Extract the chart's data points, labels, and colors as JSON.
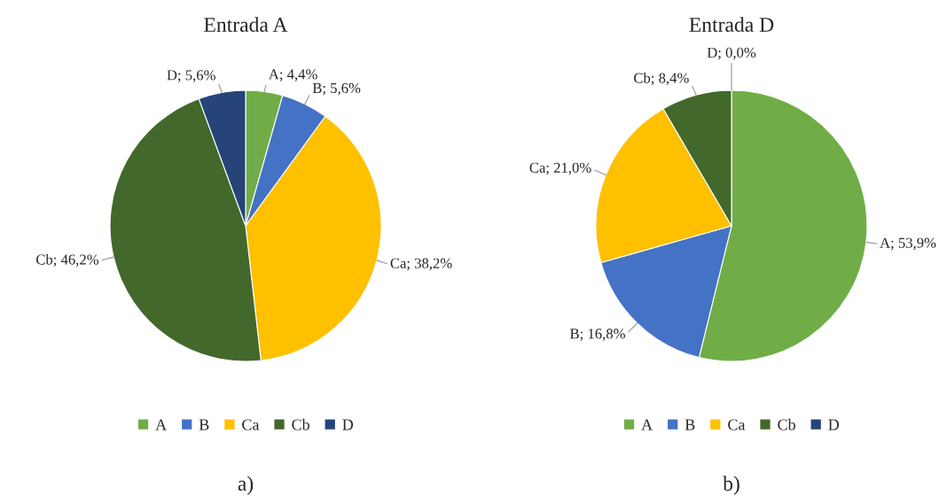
{
  "chart_data": [
    {
      "type": "pie",
      "title": "Entrada A",
      "categories": [
        "A",
        "B",
        "Ca",
        "Cb",
        "D"
      ],
      "values": [
        4.4,
        5.6,
        38.2,
        46.2,
        5.6
      ],
      "colors": [
        "#70ad47",
        "#4472c4",
        "#ffc000",
        "#43682b",
        "#264478"
      ],
      "value_labels": [
        "A; 4,4%",
        "B; 5,6%",
        "Ca; 38,2%",
        "Cb; 46,2%",
        "D; 5,6%"
      ],
      "legend": "bottom",
      "annotations": [
        "a)"
      ]
    },
    {
      "type": "pie",
      "title": "Entrada D",
      "categories": [
        "A",
        "B",
        "Ca",
        "Cb",
        "D"
      ],
      "values": [
        53.9,
        16.8,
        21.0,
        8.4,
        0.0
      ],
      "colors": [
        "#70ad47",
        "#4472c4",
        "#ffc000",
        "#43682b",
        "#264478"
      ],
      "value_labels": [
        "A; 53,9%",
        "B; 16,8%",
        "Ca; 21,0%",
        "Cb; 8,4%",
        "D; 0,0%"
      ],
      "legend": "bottom",
      "annotations": [
        "b)"
      ]
    }
  ]
}
